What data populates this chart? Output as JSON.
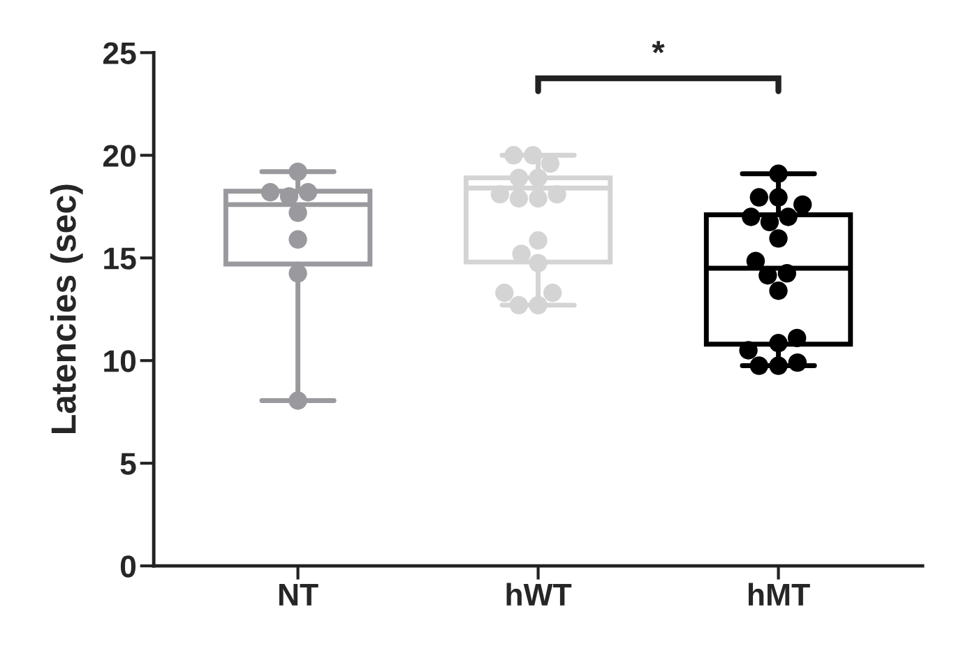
{
  "chart_data": {
    "type": "box",
    "ylabel": "Latencies (sec)",
    "categories": [
      "NT",
      "hWT",
      "hMT"
    ],
    "ylim": [
      0,
      25
    ],
    "yticks": [
      0,
      5,
      10,
      15,
      20,
      25
    ],
    "grid": false,
    "legend": false,
    "colors": [
      "#9a9a9e",
      "#d4d4d4",
      "#000000"
    ],
    "boxes": [
      {
        "low": 8.05,
        "q1": 14.7,
        "median": 17.6,
        "q3": 18.25,
        "high": 19.2
      },
      {
        "low": 12.7,
        "q1": 14.8,
        "median": 18.4,
        "q3": 18.9,
        "high": 20.0
      },
      {
        "low": 9.75,
        "q1": 10.8,
        "median": 14.5,
        "q3": 17.1,
        "high": 19.1
      }
    ],
    "series": [
      {
        "type": "scatter",
        "color": "#9a9a9e",
        "x": [
          "NT",
          "NT",
          "NT",
          "NT",
          "NT",
          "NT",
          "NT",
          "NT"
        ],
        "values": [
          19.2,
          18.2,
          18.0,
          18.2,
          17.2,
          15.9,
          14.25,
          8.05
        ]
      },
      {
        "type": "scatter",
        "color": "#d4d4d4",
        "x": [
          "hWT",
          "hWT",
          "hWT",
          "hWT",
          "hWT",
          "hWT",
          "hWT",
          "hWT",
          "hWT",
          "hWT",
          "hWT",
          "hWT",
          "hWT",
          "hWT",
          "hWT",
          "hWT"
        ],
        "values": [
          20.0,
          20.0,
          19.6,
          18.9,
          18.9,
          18.1,
          17.9,
          17.9,
          18.1,
          15.85,
          15.2,
          14.75,
          13.3,
          13.3,
          12.7,
          12.7
        ]
      },
      {
        "type": "scatter",
        "color": "#000000",
        "x": [
          "hMT",
          "hMT",
          "hMT",
          "hMT",
          "hMT",
          "hMT",
          "hMT",
          "hMT",
          "hMT",
          "hMT",
          "hMT",
          "hMT",
          "hMT",
          "hMT",
          "hMT",
          "hMT",
          "hMT",
          "hMT"
        ],
        "values": [
          19.1,
          17.95,
          17.95,
          17.6,
          17.0,
          16.75,
          17.0,
          15.95,
          14.85,
          14.15,
          14.25,
          13.4,
          11.1,
          10.85,
          10.5,
          9.9,
          9.75,
          9.75
        ]
      }
    ],
    "annotations": [
      "*"
    ]
  }
}
